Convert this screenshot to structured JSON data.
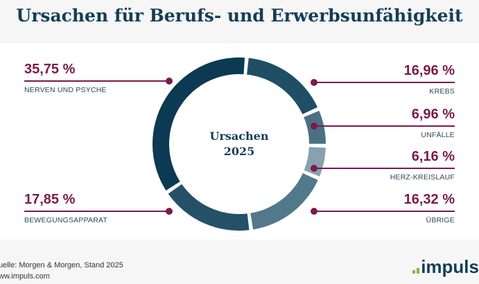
{
  "title": "Ursachen für Berufs- und Erwerbsunfähigkeit",
  "footer": {
    "source": "uelle: Morgen & Morgen, Stand 2025",
    "url": "ww.impuls.com",
    "logo_text": "impuls"
  },
  "colors": {
    "accent": "#7b1a4b",
    "title": "#143e55",
    "logo_green": "#8cb43c"
  },
  "chart_data": {
    "type": "pie",
    "donut": true,
    "center_label": [
      "Ursachen",
      "2025"
    ],
    "categories": [
      "KREBS",
      "UNFÄLLE",
      "HERZ-KREISLAUF",
      "ÜBRIGE",
      "BEWEGUNGSAPPARAT",
      "NERVEN UND PSYCHE"
    ],
    "values": [
      16.96,
      6.96,
      6.16,
      16.32,
      17.85,
      35.75
    ],
    "value_labels": [
      "16,96 %",
      "6,96 %",
      "6,16 %",
      "16,32 %",
      "17,85 %",
      "35,75 %"
    ],
    "colors": [
      "#1f4e65",
      "#4b7083",
      "#87a1ae",
      "#52798b",
      "#255168",
      "#0c3a52"
    ],
    "start_angle_deg": 5,
    "direction": "clockwise"
  }
}
